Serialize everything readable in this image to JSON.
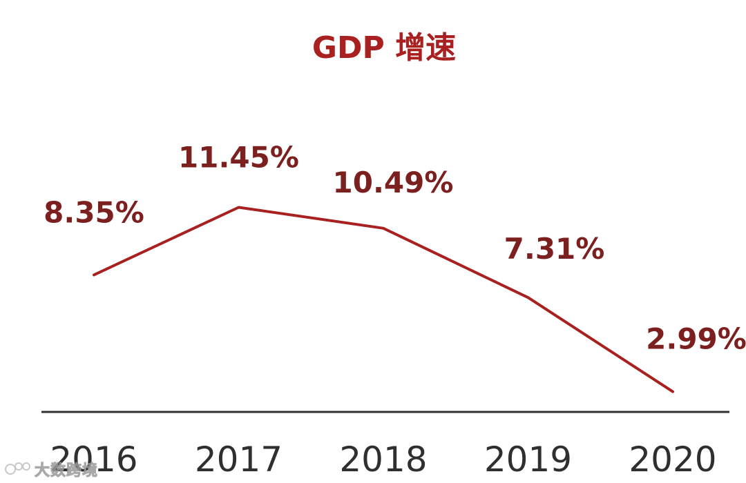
{
  "chart_data": {
    "type": "line",
    "title": "GDP 增速",
    "categories": [
      "2016",
      "2017",
      "2018",
      "2019",
      "2020"
    ],
    "series": [
      {
        "values": [
          8.35,
          11.45,
          10.49,
          7.31,
          2.99
        ],
        "labels": [
          "8.35%",
          "11.45%",
          "10.49%",
          "7.31%",
          "2.99%"
        ]
      }
    ],
    "ylim": [
      0,
      14
    ],
    "grid": false,
    "legend": "none",
    "colors": {
      "line": "#a8201f",
      "title": "#a8201f",
      "labels": "#7c1f1f",
      "axis": "#2f2f2f"
    }
  },
  "watermark": {
    "text": "大数跨境",
    "icon": "logo-icon"
  }
}
